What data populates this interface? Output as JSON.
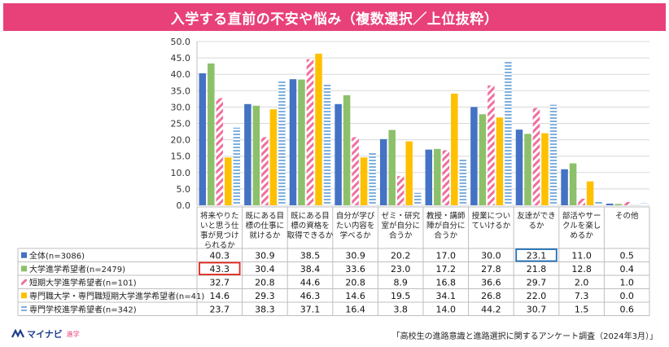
{
  "title": "入学する直前の不安や悩み（複数選択／上位抜粋）",
  "footer": {
    "source": "「高校生の進路意識と進路選択に関するアンケート調査（2024年3月）」",
    "logo_text": "マイナビ",
    "logo_sub": "進学"
  },
  "chart_data": {
    "type": "bar",
    "title": "入学する直前の不安や悩み（複数選択／上位抜粋）",
    "ylim": [
      0,
      50
    ],
    "yticks": [
      "0.0",
      "5.0",
      "10.0",
      "15.0",
      "20.0",
      "25.0",
      "30.0",
      "35.0",
      "40.0",
      "45.0",
      "50.0"
    ],
    "grid": true,
    "categories": [
      "将来やりたいと思う仕事が見つけられるか",
      "既にある目標の仕事に就けるか",
      "既にある目標の資格を取得できるか",
      "自分が学びたい内容を学べるか",
      "ゼミ・研究室が自分に合うか",
      "教授・講師陣が自分に合うか",
      "授業についていけるか",
      "友達ができるか",
      "部活やサークルを楽しめるか",
      "その他"
    ],
    "category_lines": [
      [
        "将来やりた",
        "いと思う仕",
        "事が見つけ",
        "られるか"
      ],
      [
        "既にある目",
        "標の仕事に",
        "就けるか"
      ],
      [
        "既にある目",
        "標の資格を",
        "取得できるか"
      ],
      [
        "自分が学び",
        "たい内容を",
        "学べるか"
      ],
      [
        "ゼミ・研究",
        "室が自分に",
        "合うか"
      ],
      [
        "教授・講師",
        "陣が自分に",
        "合うか"
      ],
      [
        "授業につい",
        "ていけるか"
      ],
      [
        "友達ができ",
        "るか"
      ],
      [
        "部活やサー",
        "クルを楽し",
        "めるか"
      ],
      [
        "その他"
      ]
    ],
    "series": [
      {
        "name": "全体(n=3086)",
        "color": "#4472c4",
        "pattern": "solid",
        "values": [
          40.3,
          30.9,
          38.5,
          30.9,
          20.2,
          17.0,
          30.0,
          23.1,
          11.0,
          0.5
        ],
        "labels": [
          "40.3",
          "30.9",
          "38.5",
          "30.9",
          "20.2",
          "17.0",
          "30.0",
          "23.1",
          "11.0",
          "0.5"
        ]
      },
      {
        "name": "大学進学希望者(n=2479)",
        "color": "#8dc06a",
        "pattern": "solid",
        "values": [
          43.3,
          30.4,
          38.4,
          33.6,
          23.0,
          17.2,
          27.8,
          21.8,
          12.8,
          0.4
        ],
        "labels": [
          "43.3",
          "30.4",
          "38.4",
          "33.6",
          "23.0",
          "17.2",
          "27.8",
          "21.8",
          "12.8",
          "0.4"
        ]
      },
      {
        "name": "短期大学進学希望者(n=101)",
        "color": "#f06ea0",
        "pattern": "diag",
        "values": [
          32.7,
          20.8,
          44.6,
          20.8,
          8.9,
          16.8,
          36.6,
          29.7,
          2.0,
          1.0
        ],
        "labels": [
          "32.7",
          "20.8",
          "44.6",
          "20.8",
          "8.9",
          "16.8",
          "36.6",
          "29.7",
          "2.0",
          "1.0"
        ]
      },
      {
        "name": "専門職大学・専門職短期大学進学希望者(n=41)",
        "color": "#ffc000",
        "pattern": "solid",
        "values": [
          14.6,
          29.3,
          46.3,
          14.6,
          19.5,
          34.1,
          26.8,
          22.0,
          7.3,
          0.0
        ],
        "labels": [
          "14.6",
          "29.3",
          "46.3",
          "14.6",
          "19.5",
          "34.1",
          "26.8",
          "22.0",
          "7.3",
          "0.0"
        ]
      },
      {
        "name": "専門学校進学希望者(n=342)",
        "color": "#7fb0de",
        "pattern": "horiz",
        "values": [
          23.7,
          38.3,
          37.1,
          16.4,
          3.8,
          14.0,
          44.2,
          30.7,
          1.5,
          0.6
        ],
        "labels": [
          "23.7",
          "38.3",
          "37.1",
          "16.4",
          "3.8",
          "14.0",
          "44.2",
          "30.7",
          "1.5",
          "0.6"
        ]
      }
    ],
    "highlights": [
      {
        "series": 1,
        "category": 0,
        "color": "#e0251b"
      },
      {
        "series": 0,
        "category": 7,
        "color": "#1f6fb5"
      }
    ]
  }
}
